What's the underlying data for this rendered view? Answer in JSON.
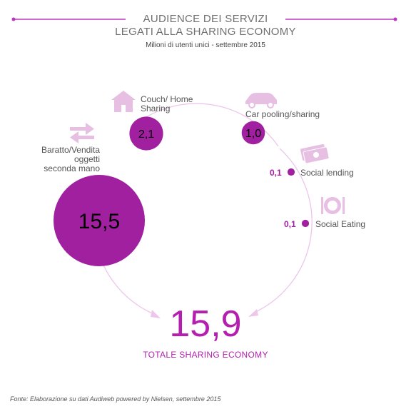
{
  "header": {
    "title_line1": "AUDIENCE DEI SERVIZI",
    "title_line2": "LEGATI ALLA SHARING ECONOMY",
    "subtitle": "Milioni di utenti unici - settembre 2015"
  },
  "chart_data": {
    "type": "bubble",
    "unit": "Milioni di utenti unici",
    "categories": [
      "Baratto/Vendita oggetti seconda mano",
      "Couch/ Home Sharing",
      "Car pooling/sharing",
      "Social lending",
      "Social Eating"
    ],
    "values": [
      15.5,
      2.1,
      1.0,
      0.1,
      0.1
    ],
    "value_labels": [
      "15,5",
      "2,1",
      "1,0",
      "0,1",
      "0,1"
    ],
    "total": 15.9,
    "total_label": "15,9",
    "total_caption": "TOTALE  SHARING ECONOMY"
  },
  "labels": {
    "baratto_line1": "Baratto/Vendita",
    "baratto_line2": "oggetti",
    "baratto_line3": "seconda mano",
    "couch_line1": "Couch/ Home",
    "couch_line2": "Sharing",
    "car": "Car pooling/sharing",
    "lending": "Social lending",
    "eating": "Social Eating"
  },
  "icons": {
    "baratto": "exchange-arrows-icon",
    "couch": "house-icon",
    "car": "car-icon",
    "lending": "money-icon",
    "eating": "plate-cutlery-icon"
  },
  "colors": {
    "accent": "#a020a0",
    "accent_light": "#e8a6e6",
    "icon": "#e6bfe3",
    "line": "#c035c0"
  },
  "footer": {
    "source": "Fonte: Elaborazione su dati Audiweb powered by Nielsen, settembre 2015"
  }
}
